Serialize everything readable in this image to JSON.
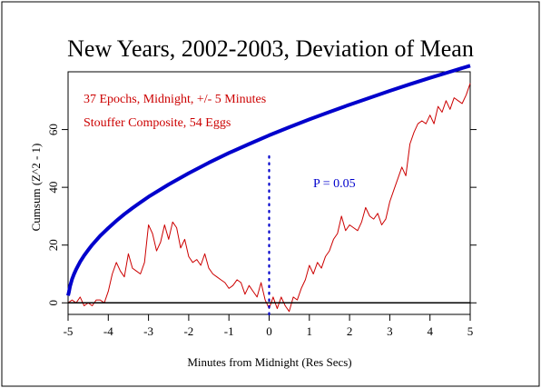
{
  "chart_data": {
    "type": "line",
    "title": "New Years, 2002-2003, Deviation of Mean",
    "xlabel": "Minutes from Midnight (Res Secs)",
    "ylabel": "Cumsum (Z^2 - 1)",
    "xlim": [
      -5,
      5
    ],
    "ylim": [
      -4,
      80
    ],
    "x_ticks": [
      -5,
      -4,
      -3,
      -2,
      -1,
      0,
      1,
      2,
      3,
      4,
      5
    ],
    "x_tick_labels": [
      "-5",
      "-4",
      "-3",
      "-2",
      "-1",
      "0",
      "1",
      "2",
      "3",
      "4",
      "5"
    ],
    "y_ticks": [
      0,
      20,
      40,
      60
    ],
    "y_tick_labels": [
      "0",
      "20",
      "40",
      "60"
    ],
    "annotations": [
      "37 Epochs, Midnight, +/- 5 Minutes",
      "Stouffer Composite, 54 Eggs"
    ],
    "grid": false,
    "series": [
      {
        "color": "#cc0000",
        "style": "line",
        "x": [
          -5,
          -4.9,
          -4.8,
          -4.7,
          -4.6,
          -4.5,
          -4.4,
          -4.3,
          -4.2,
          -4.1,
          -4.0,
          -3.9,
          -3.8,
          -3.7,
          -3.6,
          -3.5,
          -3.4,
          -3.3,
          -3.2,
          -3.1,
          -3.0,
          -2.9,
          -2.8,
          -2.7,
          -2.6,
          -2.5,
          -2.4,
          -2.3,
          -2.2,
          -2.1,
          -2.0,
          -1.9,
          -1.8,
          -1.7,
          -1.6,
          -1.5,
          -1.4,
          -1.3,
          -1.2,
          -1.1,
          -1.0,
          -0.9,
          -0.8,
          -0.7,
          -0.6,
          -0.5,
          -0.4,
          -0.3,
          -0.2,
          -0.1,
          0.0,
          0.1,
          0.2,
          0.3,
          0.4,
          0.5,
          0.6,
          0.7,
          0.8,
          0.9,
          1.0,
          1.1,
          1.2,
          1.3,
          1.4,
          1.5,
          1.6,
          1.7,
          1.8,
          1.9,
          2.0,
          2.1,
          2.2,
          2.3,
          2.4,
          2.5,
          2.6,
          2.7,
          2.8,
          2.9,
          3.0,
          3.1,
          3.2,
          3.3,
          3.4,
          3.5,
          3.6,
          3.7,
          3.8,
          3.9,
          4.0,
          4.1,
          4.2,
          4.3,
          4.4,
          4.5,
          4.6,
          4.7,
          4.8,
          4.9,
          5.0
        ],
        "values": [
          0,
          1,
          0,
          2,
          -1,
          0,
          -1,
          1,
          1,
          0,
          4,
          10,
          14,
          11,
          9,
          17,
          12,
          11,
          10,
          14,
          27,
          24,
          18,
          21,
          27,
          22,
          28,
          26,
          19,
          22,
          16,
          14,
          15,
          13,
          17,
          12,
          10,
          9,
          8,
          7,
          5,
          6,
          8,
          7,
          3,
          6,
          4,
          2,
          7,
          1,
          -2,
          2,
          -2,
          2,
          -1,
          -3,
          2,
          1,
          5,
          8,
          13,
          10,
          14,
          12,
          16,
          18,
          22,
          24,
          30,
          25,
          27,
          26,
          25,
          28,
          33,
          30,
          29,
          31,
          27,
          29,
          35,
          39,
          43,
          47,
          44,
          55,
          59,
          62,
          63,
          62,
          65,
          62,
          68,
          66,
          70,
          67,
          71,
          70,
          69,
          72,
          76
        ]
      },
      {
        "name": "P = 0.05",
        "color": "#0000cc",
        "style": "line",
        "x": [
          -5,
          -4.98,
          -4.95,
          -4.9,
          -4.85,
          -4.8,
          -4.7,
          -4.6,
          -4.5,
          -4.4,
          -4.2,
          -4.0,
          -3.8,
          -3.6,
          -3.4,
          -3.2,
          -3.0,
          -2.5,
          -2.0,
          -1.5,
          -1.0,
          -0.5,
          0.0,
          0.5,
          1.0,
          1.5,
          2.0,
          2.5,
          3.0,
          3.5,
          4.0,
          4.5,
          5.0
        ],
        "values": [
          2.5,
          3.7,
          5.8,
          8.2,
          10.0,
          11.6,
          14.2,
          16.4,
          18.3,
          20.1,
          23.2,
          25.9,
          28.4,
          30.7,
          32.8,
          34.8,
          36.7,
          41.0,
          44.9,
          48.5,
          51.9,
          55.0,
          58.0,
          60.8,
          63.5,
          66.1,
          68.6,
          71.0,
          73.4,
          75.7,
          77.9,
          80.0,
          82.1
        ]
      },
      {
        "color": "#000000",
        "style": "line",
        "x": [
          -5,
          5
        ],
        "values": [
          0,
          0
        ]
      },
      {
        "color": "#0000cc",
        "style": "dotted",
        "x": [
          0,
          0
        ],
        "values": [
          -4,
          52
        ]
      }
    ]
  }
}
